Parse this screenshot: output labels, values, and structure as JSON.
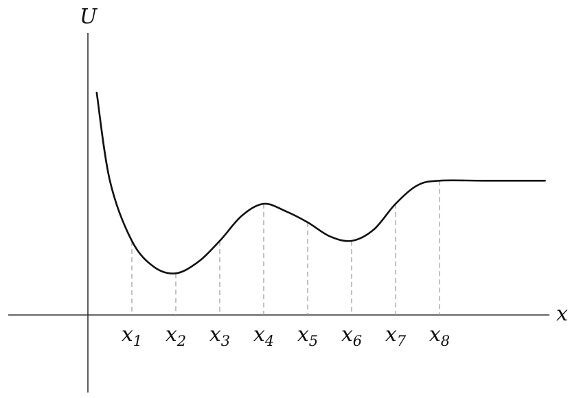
{
  "chart_data": {
    "type": "line",
    "ylabel": "U",
    "xlabel": "x",
    "grid": false,
    "legend": "none",
    "points": [
      {
        "name": "x1",
        "base": "x",
        "sub": "1",
        "x": 1,
        "y": 0.8
      },
      {
        "name": "x2",
        "base": "x",
        "sub": "2",
        "x": 2,
        "y": 0.45
      },
      {
        "name": "x3",
        "base": "x",
        "sub": "3",
        "x": 3,
        "y": 0.8
      },
      {
        "name": "x4",
        "base": "x",
        "sub": "4",
        "x": 4,
        "y": 1.2
      },
      {
        "name": "x5",
        "base": "x",
        "sub": "5",
        "x": 5,
        "y": 1.0
      },
      {
        "name": "x6",
        "base": "x",
        "sub": "6",
        "x": 6,
        "y": 0.8
      },
      {
        "name": "x7",
        "base": "x",
        "sub": "7",
        "x": 7,
        "y": 1.2
      },
      {
        "name": "x8",
        "base": "x",
        "sub": "8",
        "x": 8,
        "y": 1.45
      }
    ],
    "curve": {
      "x": [
        0.2,
        0.5,
        1,
        1.5,
        2,
        2.5,
        3,
        3.5,
        4,
        4.5,
        5,
        5.5,
        6,
        6.5,
        7,
        7.5,
        8,
        9,
        10.4
      ],
      "y": [
        2.4,
        1.45,
        0.8,
        0.52,
        0.45,
        0.57,
        0.8,
        1.07,
        1.2,
        1.12,
        1.0,
        0.85,
        0.8,
        0.92,
        1.2,
        1.4,
        1.45,
        1.45,
        1.45
      ]
    }
  }
}
